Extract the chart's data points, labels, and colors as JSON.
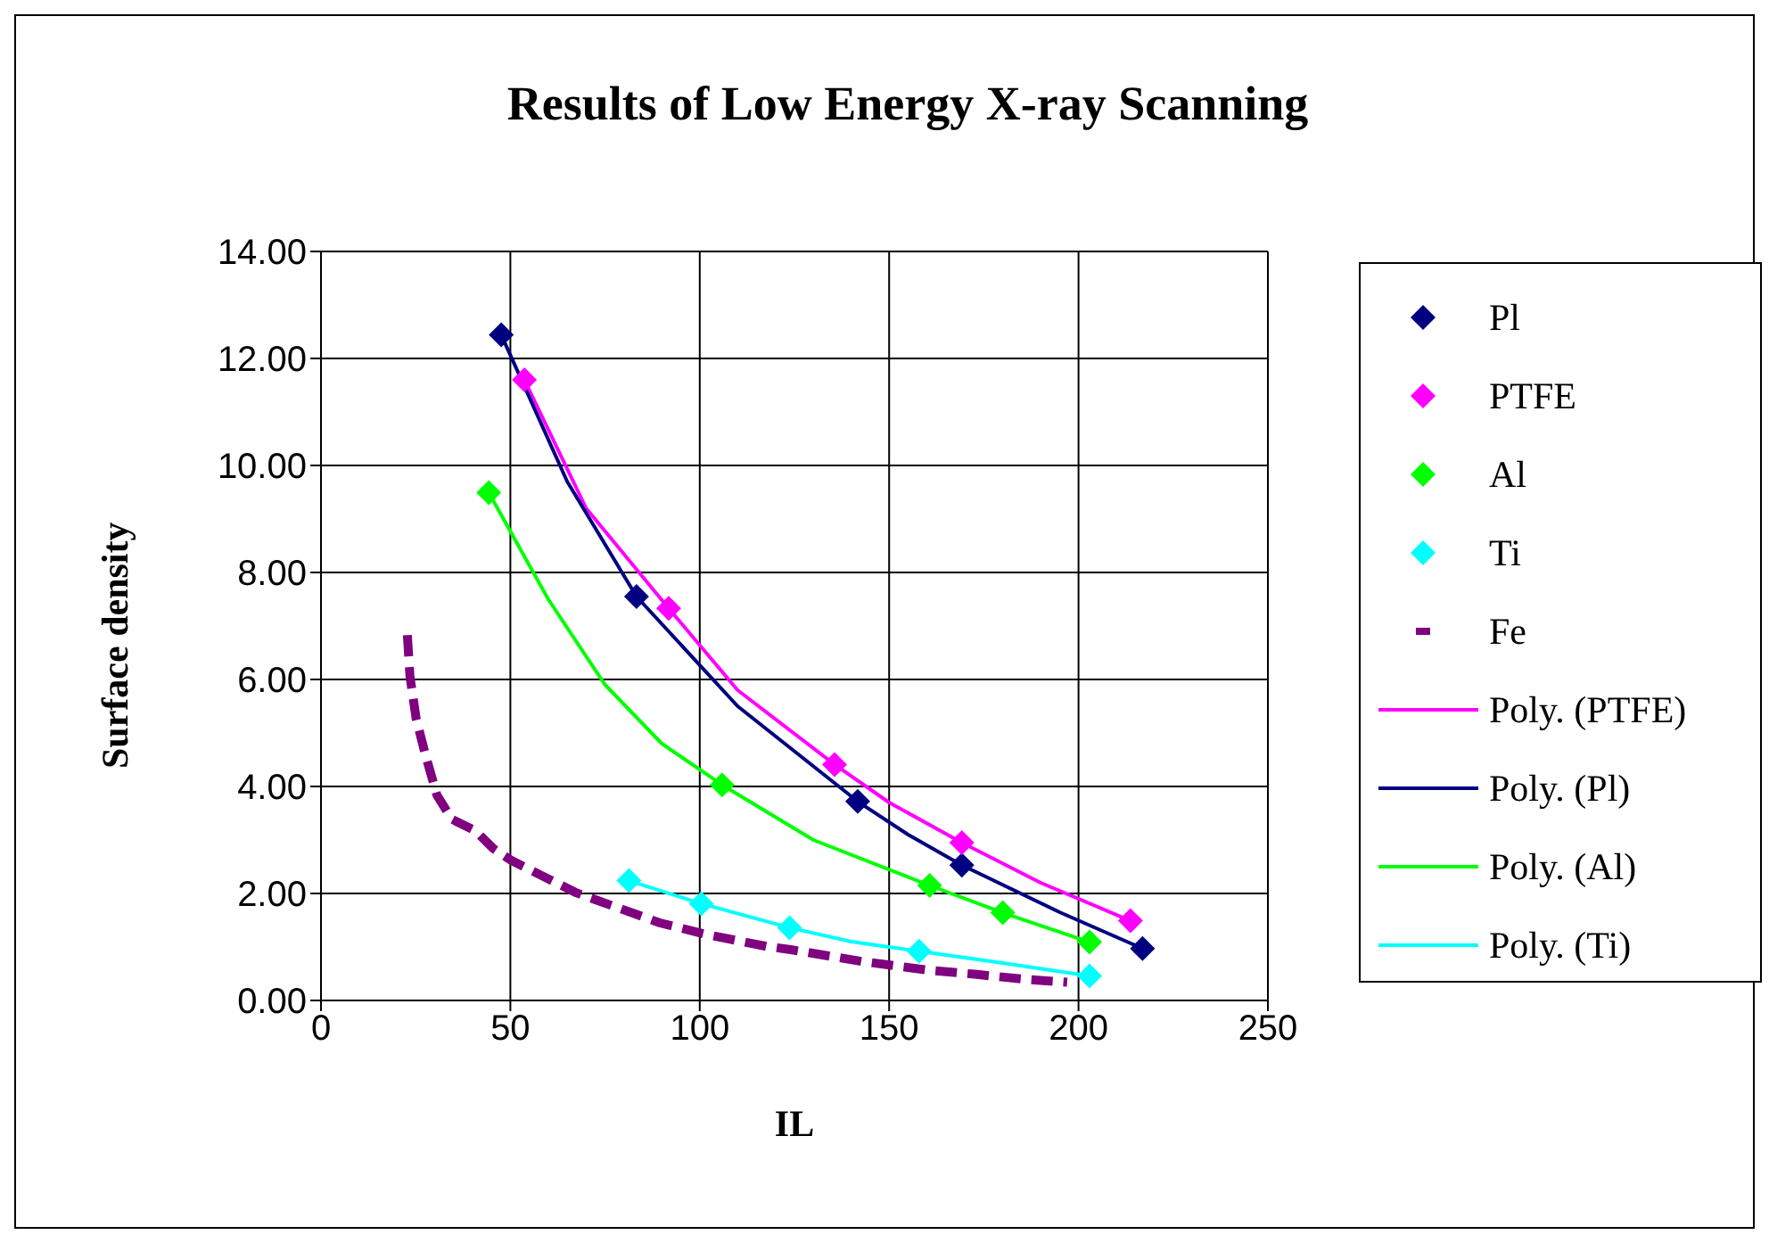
{
  "chart_data": {
    "type": "scatter",
    "title": "Results of Low Energy X-ray Scanning",
    "xlabel": "IL",
    "ylabel": "Surface density",
    "xlim": [
      0,
      250
    ],
    "xticks": [
      0,
      50,
      100,
      150,
      200,
      250
    ],
    "ylim": [
      0,
      14
    ],
    "yticks": [
      {
        "value": 0,
        "label": "0.00"
      },
      {
        "value": 2,
        "label": "2.00"
      },
      {
        "value": 4,
        "label": "4.00"
      },
      {
        "value": 6,
        "label": "6.00"
      },
      {
        "value": 8,
        "label": "8.00"
      },
      {
        "value": 10,
        "label": "10.00"
      },
      {
        "value": 12,
        "label": "12.00"
      },
      {
        "value": 14,
        "label": "14.00"
      }
    ],
    "grid": true,
    "legend": "right",
    "marker": "diamond",
    "series": [
      {
        "name": "Pl",
        "color": "#000080",
        "x": [
          47.6,
          83.3,
          141.7,
          169.2,
          216.9
        ],
        "values": [
          12.44,
          7.55,
          3.72,
          2.53,
          0.97
        ]
      },
      {
        "name": "PTFE",
        "color": "#ff00ff",
        "x": [
          53.7,
          91.8,
          135.6,
          169.2,
          213.7
        ],
        "values": [
          11.6,
          7.33,
          4.41,
          2.95,
          1.49
        ]
      },
      {
        "name": "Al",
        "color": "#00ff00",
        "x": [
          44.3,
          105.9,
          160.7,
          180.0,
          202.9
        ],
        "values": [
          9.49,
          4.03,
          2.15,
          1.64,
          1.09
        ]
      },
      {
        "name": "Ti",
        "color": "#00ffff",
        "x": [
          81.3,
          100.4,
          123.7,
          157.9,
          202.9
        ],
        "values": [
          2.24,
          1.81,
          1.36,
          0.92,
          0.46
        ]
      },
      {
        "name": "Fe",
        "type": "line",
        "marker": "none",
        "line_style": "dashed",
        "color": "#800080",
        "x": [
          22.8,
          23.5,
          25.1,
          27.5,
          30.6,
          34.5,
          40.8,
          45.5,
          50.2,
          58.1,
          67.5,
          78.5,
          89.5,
          102,
          117.7,
          124,
          142.8,
          160,
          172.6,
          185.2,
          197
        ],
        "values": [
          6.83,
          6.05,
          5.28,
          4.61,
          3.84,
          3.39,
          3.17,
          2.84,
          2.62,
          2.34,
          2.01,
          1.73,
          1.45,
          1.23,
          1.01,
          0.95,
          0.73,
          0.57,
          0.49,
          0.4,
          0.34
        ]
      },
      {
        "name": "Poly. (PTFE)",
        "type": "line",
        "marker": "none",
        "color": "#ff00ff",
        "x": [
          53.7,
          70,
          91.8,
          110,
          135.6,
          150,
          169.2,
          190,
          213.7
        ],
        "values": [
          11.6,
          9.2,
          7.33,
          5.8,
          4.41,
          3.7,
          2.95,
          2.2,
          1.49
        ]
      },
      {
        "name": "Poly. (Pl)",
        "type": "line",
        "marker": "none",
        "color": "#000080",
        "x": [
          47.6,
          65,
          83.3,
          110,
          141.7,
          155,
          169.2,
          195,
          216.9
        ],
        "values": [
          12.44,
          9.7,
          7.55,
          5.5,
          3.72,
          3.1,
          2.53,
          1.65,
          0.97
        ]
      },
      {
        "name": "Poly. (Al)",
        "type": "line",
        "marker": "none",
        "color": "#00ff00",
        "x": [
          44.3,
          60,
          75,
          90,
          105.9,
          130,
          160.7,
          180.0,
          202.9
        ],
        "values": [
          9.49,
          7.5,
          5.9,
          4.8,
          4.03,
          3.0,
          2.15,
          1.64,
          1.09
        ]
      },
      {
        "name": "Poly. (Ti)",
        "type": "line",
        "marker": "none",
        "color": "#00ffff",
        "x": [
          81.3,
          100.4,
          123.7,
          140,
          157.9,
          180,
          202.9
        ],
        "values": [
          2.24,
          1.81,
          1.36,
          1.1,
          0.92,
          0.7,
          0.46
        ]
      }
    ]
  }
}
